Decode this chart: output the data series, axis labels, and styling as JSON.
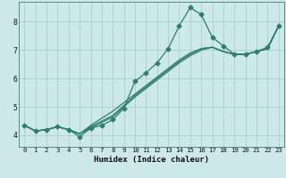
{
  "xlabel": "Humidex (Indice chaleur)",
  "ylabel": "",
  "xlim": [
    -0.5,
    23.5
  ],
  "ylim": [
    3.6,
    8.7
  ],
  "xticks": [
    0,
    1,
    2,
    3,
    4,
    5,
    6,
    7,
    8,
    9,
    10,
    11,
    12,
    13,
    14,
    15,
    16,
    17,
    18,
    19,
    20,
    21,
    22,
    23
  ],
  "yticks": [
    4,
    5,
    6,
    7,
    8
  ],
  "background_color": "#cce8e8",
  "grid_color": "#aacece",
  "line_color": "#2e7d6e",
  "series_with_markers": [
    4.35,
    4.15,
    4.2,
    4.3,
    4.2,
    3.95,
    4.25,
    4.35,
    4.55,
    4.95,
    5.9,
    6.2,
    6.55,
    7.05,
    7.85,
    8.5,
    8.25,
    7.45,
    7.15,
    6.85,
    6.85,
    6.95,
    7.1,
    7.85
  ],
  "smooth_lines": [
    [
      4.35,
      4.15,
      4.2,
      4.3,
      4.2,
      4.05,
      4.25,
      4.45,
      4.65,
      5.0,
      5.35,
      5.65,
      5.95,
      6.25,
      6.55,
      6.8,
      7.0,
      7.1,
      6.95,
      6.85,
      6.85,
      6.95,
      7.05,
      7.85
    ],
    [
      4.35,
      4.15,
      4.2,
      4.3,
      4.2,
      4.05,
      4.3,
      4.5,
      4.7,
      5.05,
      5.4,
      5.7,
      6.0,
      6.3,
      6.6,
      6.85,
      7.05,
      7.1,
      6.95,
      6.85,
      6.85,
      6.95,
      7.05,
      7.85
    ],
    [
      4.35,
      4.15,
      4.2,
      4.3,
      4.2,
      4.05,
      4.35,
      4.6,
      4.85,
      5.15,
      5.45,
      5.75,
      6.05,
      6.35,
      6.65,
      6.9,
      7.05,
      7.1,
      6.95,
      6.85,
      6.85,
      6.95,
      7.05,
      7.85
    ]
  ],
  "marker": "D",
  "markersize": 2.5,
  "linewidth": 0.9
}
